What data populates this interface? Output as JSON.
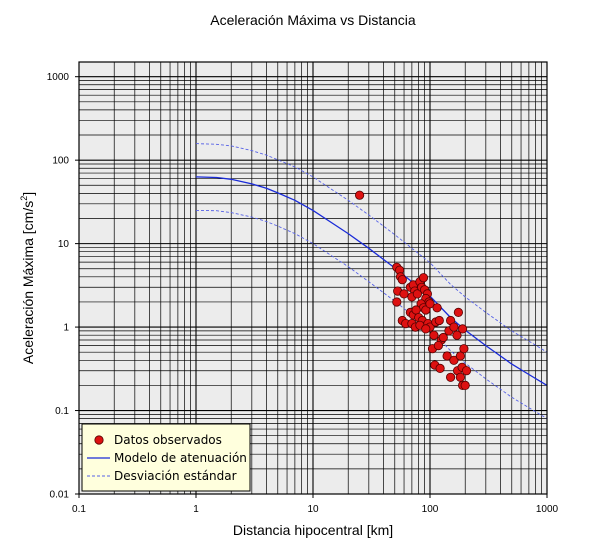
{
  "chart_data": {
    "type": "scatter",
    "title": "Aceleración Máxima vs Distancia",
    "xlabel": "Distancia hipocentral [km]",
    "ylabel_prefix": "Aceleración Máxima [cm/s",
    "ylabel_sup": "2",
    "ylabel_suffix": "]",
    "x_scale": "log",
    "y_scale": "log",
    "xlim": [
      0.1,
      1000
    ],
    "ylim": [
      0.01,
      1500
    ],
    "x_ticks": [
      {
        "value": 0.1,
        "label": "0.1"
      },
      {
        "value": 1,
        "label": "1"
      },
      {
        "value": 10,
        "label": "10"
      },
      {
        "value": 100,
        "label": "100"
      },
      {
        "value": 1000,
        "label": "1000"
      }
    ],
    "y_ticks": [
      {
        "value": 0.01,
        "label": "0.01"
      },
      {
        "value": 0.1,
        "label": "0.1"
      },
      {
        "value": 1,
        "label": "1"
      },
      {
        "value": 10,
        "label": "10"
      },
      {
        "value": 100,
        "label": "100"
      },
      {
        "value": 1000,
        "label": "1000"
      }
    ],
    "grid": true,
    "legend_position": "bottom-left",
    "colors": {
      "plot_background": "#ececec",
      "grid": "#000000",
      "points_fill": "#dd1111",
      "points_stroke": "#550000",
      "model_line": "#1a2bd8",
      "deviation_line": "#5560e6",
      "legend_background": "#ffffdd"
    },
    "series": [
      {
        "name": "Datos observados",
        "kind": "points",
        "points": [
          [
            25,
            38
          ],
          [
            52,
            5.2
          ],
          [
            55,
            4.8
          ],
          [
            56,
            4.0
          ],
          [
            58,
            3.7
          ],
          [
            53,
            2.7
          ],
          [
            60,
            2.5
          ],
          [
            52,
            2.0
          ],
          [
            58,
            1.2
          ],
          [
            62,
            1.1
          ],
          [
            68,
            3.0
          ],
          [
            72,
            3.2
          ],
          [
            74,
            2.7
          ],
          [
            70,
            2.3
          ],
          [
            78,
            2.5
          ],
          [
            82,
            3.5
          ],
          [
            88,
            3.9
          ],
          [
            85,
            3.0
          ],
          [
            90,
            2.8
          ],
          [
            95,
            2.5
          ],
          [
            92,
            2.2
          ],
          [
            98,
            2.0
          ],
          [
            84,
            1.9
          ],
          [
            88,
            1.7
          ],
          [
            92,
            1.6
          ],
          [
            100,
            1.9
          ],
          [
            68,
            1.5
          ],
          [
            72,
            1.4
          ],
          [
            76,
            1.6
          ],
          [
            80,
            1.3
          ],
          [
            86,
            1.2
          ],
          [
            70,
            1.1
          ],
          [
            75,
            1.0
          ],
          [
            82,
            1.05
          ],
          [
            96,
            1.1
          ],
          [
            100,
            1.0
          ],
          [
            92,
            0.95
          ],
          [
            115,
            1.7
          ],
          [
            112,
            1.15
          ],
          [
            120,
            1.2
          ],
          [
            108,
            0.8
          ],
          [
            125,
            0.7
          ],
          [
            105,
            0.55
          ],
          [
            130,
            0.75
          ],
          [
            118,
            0.6
          ],
          [
            150,
            1.2
          ],
          [
            145,
            0.9
          ],
          [
            160,
            1.0
          ],
          [
            175,
            1.5
          ],
          [
            190,
            0.95
          ],
          [
            170,
            0.8
          ],
          [
            110,
            0.35
          ],
          [
            122,
            0.32
          ],
          [
            140,
            0.45
          ],
          [
            160,
            0.4
          ],
          [
            182,
            0.45
          ],
          [
            195,
            0.55
          ],
          [
            150,
            0.25
          ],
          [
            172,
            0.3
          ],
          [
            182,
            0.25
          ],
          [
            190,
            0.2
          ],
          [
            200,
            0.2
          ],
          [
            188,
            0.33
          ],
          [
            205,
            0.3
          ]
        ]
      },
      {
        "name": "Modelo de atenuación",
        "kind": "line",
        "points": [
          [
            1,
            63
          ],
          [
            1.5,
            62
          ],
          [
            2,
            59
          ],
          [
            3,
            52
          ],
          [
            4,
            46
          ],
          [
            5,
            40.5
          ],
          [
            7,
            33
          ],
          [
            10,
            25
          ],
          [
            15,
            17.2
          ],
          [
            20,
            13.2
          ],
          [
            30,
            8.8
          ],
          [
            50,
            5.1
          ],
          [
            70,
            3.5
          ],
          [
            100,
            2.35
          ],
          [
            150,
            1.3
          ],
          [
            200,
            0.92
          ],
          [
            300,
            0.6
          ],
          [
            500,
            0.36
          ],
          [
            700,
            0.27
          ],
          [
            1000,
            0.2
          ]
        ]
      },
      {
        "name": "Desviación estándar",
        "kind": "dashed",
        "lines": [
          [
            [
              1,
              158
            ],
            [
              1.5,
              155
            ],
            [
              2,
              148
            ],
            [
              3,
              130
            ],
            [
              4,
              115
            ],
            [
              5,
              101
            ],
            [
              7,
              83
            ],
            [
              10,
              63
            ],
            [
              15,
              43
            ],
            [
              20,
              33
            ],
            [
              30,
              22
            ],
            [
              50,
              12.8
            ],
            [
              70,
              8.8
            ],
            [
              100,
              5.9
            ],
            [
              150,
              3.25
            ],
            [
              200,
              2.3
            ],
            [
              300,
              1.5
            ],
            [
              500,
              0.9
            ],
            [
              700,
              0.68
            ],
            [
              1000,
              0.5
            ]
          ],
          [
            [
              1,
              25
            ],
            [
              1.5,
              24.8
            ],
            [
              2,
              23.5
            ],
            [
              3,
              20.8
            ],
            [
              4,
              18.4
            ],
            [
              5,
              16.2
            ],
            [
              7,
              13.2
            ],
            [
              10,
              10
            ],
            [
              15,
              6.9
            ],
            [
              20,
              5.3
            ],
            [
              30,
              3.5
            ],
            [
              50,
              2.04
            ],
            [
              70,
              1.4
            ],
            [
              100,
              0.94
            ],
            [
              150,
              0.52
            ],
            [
              200,
              0.37
            ],
            [
              300,
              0.24
            ],
            [
              500,
              0.144
            ],
            [
              700,
              0.108
            ],
            [
              1000,
              0.08
            ]
          ]
        ]
      }
    ]
  }
}
